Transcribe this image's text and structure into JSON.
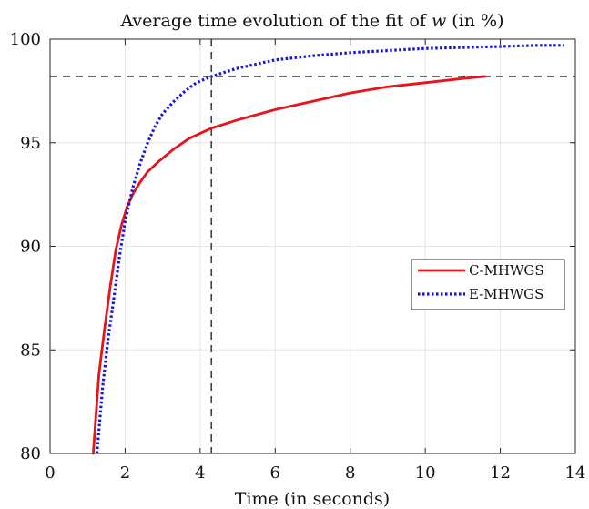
{
  "chart_data": {
    "type": "line",
    "title": "Average time evolution of the fit of w (in %)",
    "title_parts": {
      "before": "Average time evolution of the fit of ",
      "var": "w",
      "after": " (in %)"
    },
    "xlabel": "Time (in seconds)",
    "ylabel": "",
    "xlim": [
      0,
      14
    ],
    "ylim": [
      80,
      100
    ],
    "xticks": [
      0,
      2,
      4,
      6,
      8,
      10,
      12,
      14
    ],
    "yticks": [
      80,
      85,
      90,
      95,
      100
    ],
    "grid": true,
    "legend_position": "right",
    "reference_lines": {
      "x": 4.3,
      "y": 98.2
    },
    "series": [
      {
        "name": "C-MHWGS",
        "color": "#e8141a",
        "style": "solid",
        "x": [
          1.15,
          1.3,
          1.45,
          1.6,
          1.75,
          1.9,
          2.05,
          2.2,
          2.4,
          2.6,
          2.9,
          3.3,
          3.7,
          4.3,
          5.0,
          6.0,
          7.0,
          8.0,
          9.0,
          10.0,
          11.0,
          11.6
        ],
        "y": [
          80.0,
          83.8,
          86.0,
          88.0,
          89.8,
          91.0,
          91.9,
          92.5,
          93.1,
          93.6,
          94.1,
          94.7,
          95.2,
          95.7,
          96.1,
          96.6,
          97.0,
          97.4,
          97.7,
          97.9,
          98.1,
          98.2
        ]
      },
      {
        "name": "E-MHWGS",
        "color": "#1414e8",
        "style": "dotted",
        "x": [
          1.25,
          1.4,
          1.55,
          1.7,
          1.85,
          2.0,
          2.2,
          2.4,
          2.6,
          2.8,
          3.0,
          3.3,
          3.6,
          3.9,
          4.3,
          5.0,
          6.0,
          7.0,
          8.0,
          9.0,
          10.0,
          11.0,
          12.0,
          13.0,
          13.7
        ],
        "y": [
          80.0,
          83.2,
          85.6,
          87.5,
          89.5,
          91.2,
          92.8,
          94.0,
          95.0,
          95.8,
          96.4,
          97.0,
          97.5,
          97.9,
          98.2,
          98.6,
          99.0,
          99.2,
          99.35,
          99.45,
          99.55,
          99.6,
          99.65,
          99.7,
          99.7
        ]
      }
    ]
  }
}
